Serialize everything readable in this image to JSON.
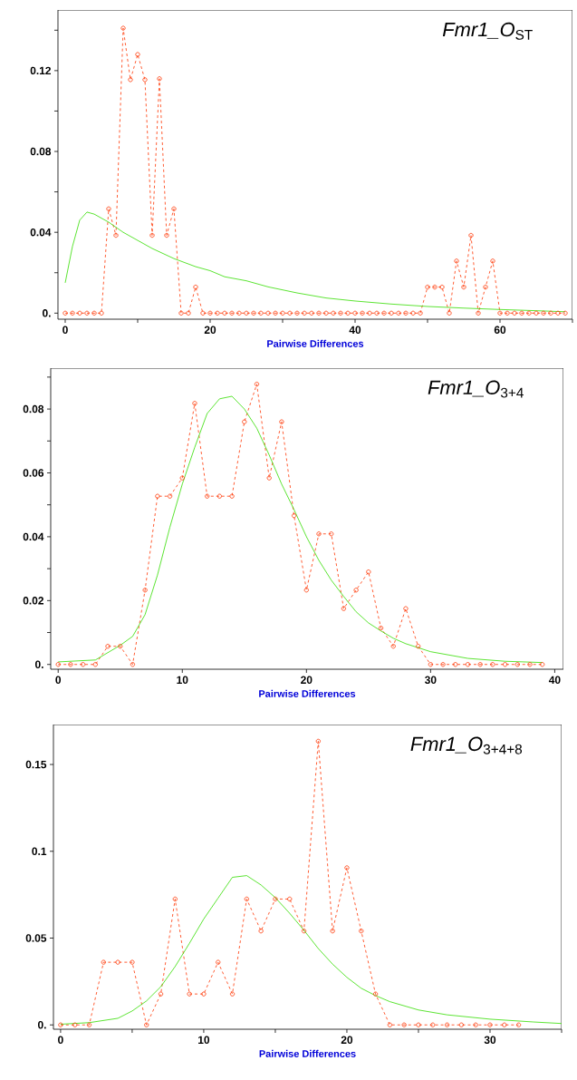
{
  "chart_data": [
    {
      "type": "line",
      "title": "*Fmr1_O*$_{ST}$",
      "xlabel": "Pairwise Differences",
      "xlim": [
        -1,
        70
      ],
      "ylim": [
        -0.003,
        0.15
      ],
      "xticks": [
        0,
        {
          "value": 10,
          "label": null
        },
        20,
        {
          "value": 30,
          "label": null
        },
        40,
        {
          "value": 50,
          "label": null
        },
        60,
        {
          "value": 70,
          "label": null
        }
      ],
      "yticks": [
        {
          "value": 0,
          "label": "0."
        },
        {
          "value": 0.02,
          "label": null
        },
        0.04,
        {
          "value": 0.06,
          "label": null
        },
        0.08,
        {
          "value": 0.1,
          "label": null
        },
        0.12,
        {
          "value": 0.14,
          "label": null
        }
      ],
      "grid": false,
      "series": [
        {
          "color": "#ff3300",
          "marker": "circle",
          "line_style": "dashed",
          "x": [
            0,
            1,
            2,
            3,
            4,
            5,
            6,
            7,
            8,
            9,
            10,
            11,
            12,
            13,
            14,
            15,
            16,
            17,
            18,
            19,
            20,
            21,
            22,
            23,
            24,
            25,
            26,
            27,
            28,
            29,
            30,
            31,
            32,
            33,
            34,
            35,
            36,
            37,
            38,
            39,
            40,
            41,
            42,
            43,
            44,
            45,
            46,
            47,
            48,
            49,
            50,
            51,
            52,
            53,
            54,
            55,
            56,
            57,
            58,
            59,
            60,
            61,
            62,
            63,
            64,
            65,
            66,
            67,
            68,
            69
          ],
          "values": [
            0,
            0,
            0,
            0,
            0,
            0,
            0.0516,
            0.0385,
            0.141,
            0.1155,
            0.128,
            0.1155,
            0.0385,
            0.116,
            0.0385,
            0.0516,
            0,
            0,
            0.0129,
            0,
            0,
            0,
            0,
            0,
            0,
            0,
            0,
            0,
            0,
            0,
            0,
            0,
            0,
            0,
            0,
            0,
            0,
            0,
            0,
            0,
            0,
            0,
            0,
            0,
            0,
            0,
            0,
            0,
            0,
            0,
            0.0129,
            0.0129,
            0.0129,
            0,
            0.0258,
            0.0129,
            0.0385,
            0,
            0.0129,
            0.0258,
            0,
            0,
            0,
            0,
            0,
            0,
            0,
            0,
            0,
            0
          ]
        },
        {
          "color": "#33dd00",
          "marker": "none",
          "line_style": "solid",
          "x": [
            0,
            1,
            2,
            3,
            4,
            6,
            8,
            10,
            12,
            15,
            18,
            20,
            22,
            25,
            28,
            32,
            36,
            40,
            45,
            50,
            55,
            60,
            65,
            69
          ],
          "values": [
            0.015,
            0.033,
            0.046,
            0.05,
            0.049,
            0.045,
            0.04,
            0.036,
            0.032,
            0.027,
            0.023,
            0.021,
            0.018,
            0.016,
            0.013,
            0.01,
            0.0075,
            0.006,
            0.0045,
            0.0033,
            0.0025,
            0.0018,
            0.0012,
            0.0007
          ]
        }
      ]
    },
    {
      "type": "line",
      "title": "*Fmr1_O*$_{3+4}$",
      "xlabel": "Pairwise Differences",
      "xlim": [
        -0.6,
        40.7
      ],
      "ylim": [
        -0.0015,
        0.0928
      ],
      "xticks": [
        0,
        10,
        20,
        30,
        40
      ],
      "yticks": [
        {
          "value": 0,
          "label": "0."
        },
        {
          "value": 0.01,
          "label": null
        },
        0.02,
        {
          "value": 0.03,
          "label": null
        },
        0.04,
        {
          "value": 0.05,
          "label": null
        },
        0.06,
        {
          "value": 0.07,
          "label": null
        },
        0.08,
        {
          "value": 0.09,
          "label": null
        }
      ],
      "grid": false,
      "series": [
        {
          "color": "#ff3300",
          "marker": "circle",
          "line_style": "dashed",
          "x": [
            0,
            1,
            2,
            3,
            4,
            5,
            6,
            7,
            8,
            9,
            10,
            11,
            12,
            13,
            14,
            15,
            16,
            17,
            18,
            19,
            20,
            21,
            22,
            23,
            24,
            25,
            26,
            27,
            28,
            29,
            30,
            31,
            32,
            33,
            34,
            35,
            36,
            37,
            38,
            39
          ],
          "values": [
            0,
            0,
            0,
            0,
            0.0057,
            0.0057,
            0,
            0.0233,
            0.0527,
            0.0527,
            0.0584,
            0.0818,
            0.0527,
            0.0527,
            0.0527,
            0.076,
            0.0878,
            0.0584,
            0.076,
            0.0466,
            0.0233,
            0.0409,
            0.0409,
            0.0175,
            0.0233,
            0.029,
            0.0114,
            0.0057,
            0.0175,
            0.0057,
            0,
            0,
            0,
            0,
            0,
            0,
            0,
            0,
            0,
            0
          ]
        },
        {
          "color": "#33dd00",
          "marker": "none",
          "line_style": "solid",
          "x": [
            0,
            3,
            5,
            6,
            7,
            8,
            9,
            10,
            11,
            12,
            13,
            14,
            15,
            16,
            17,
            18,
            19,
            20,
            21,
            22,
            23,
            24,
            25,
            26,
            27,
            28,
            30,
            33,
            36,
            39
          ],
          "values": [
            0.0008,
            0.0014,
            0.006,
            0.0088,
            0.0156,
            0.028,
            0.043,
            0.0565,
            0.068,
            0.0786,
            0.0832,
            0.084,
            0.08,
            0.074,
            0.0656,
            0.0565,
            0.0485,
            0.04,
            0.0326,
            0.0264,
            0.0213,
            0.0165,
            0.013,
            0.0105,
            0.0082,
            0.0065,
            0.004,
            0.0019,
            0.001,
            0.0006
          ]
        }
      ]
    },
    {
      "type": "line",
      "title": "*Fmr1_O*$_{3+4+8}$",
      "xlabel": "Pairwise Differences",
      "xlim": [
        -0.5,
        35
      ],
      "ylim": [
        -0.0025,
        0.173
      ],
      "xticks": [
        0,
        {
          "value": 5,
          "label": null
        },
        10,
        {
          "value": 15,
          "label": null
        },
        20,
        {
          "value": 25,
          "label": null
        },
        30,
        {
          "value": 35,
          "label": null
        }
      ],
      "yticks": [
        {
          "value": 0,
          "label": "0."
        },
        0.05,
        0.1,
        0.15
      ],
      "grid": false,
      "series": [
        {
          "color": "#ff3300",
          "marker": "circle",
          "line_style": "dashed",
          "x": [
            0,
            1,
            2,
            3,
            4,
            5,
            6,
            7,
            8,
            9,
            10,
            11,
            12,
            13,
            14,
            15,
            16,
            17,
            18,
            19,
            20,
            21,
            22,
            23,
            24,
            25,
            26,
            27,
            28,
            29,
            30,
            31,
            32
          ],
          "values": [
            0,
            0,
            0,
            0.0361,
            0.0361,
            0.0361,
            0,
            0.0178,
            0.0725,
            0.0178,
            0.0178,
            0.0361,
            0.0178,
            0.0725,
            0.0541,
            0.0725,
            0.0725,
            0.0541,
            0.1634,
            0.0541,
            0.0905,
            0.0541,
            0.0178,
            0,
            0,
            0,
            0,
            0,
            0,
            0,
            0,
            0,
            0
          ]
        },
        {
          "color": "#33dd00",
          "marker": "none",
          "line_style": "solid",
          "x": [
            0,
            2,
            4,
            5,
            6,
            7,
            8,
            9,
            10,
            11,
            12,
            13,
            14,
            15,
            16,
            17,
            18,
            19,
            20,
            21,
            22,
            23,
            25,
            27,
            30,
            33,
            35
          ],
          "values": [
            0.0004,
            0.0013,
            0.0038,
            0.008,
            0.0138,
            0.022,
            0.0336,
            0.047,
            0.061,
            0.073,
            0.085,
            0.086,
            0.0806,
            0.0733,
            0.0643,
            0.0545,
            0.044,
            0.035,
            0.0274,
            0.0211,
            0.0169,
            0.0134,
            0.0086,
            0.0058,
            0.0033,
            0.0017,
            0.0008
          ]
        }
      ]
    }
  ]
}
